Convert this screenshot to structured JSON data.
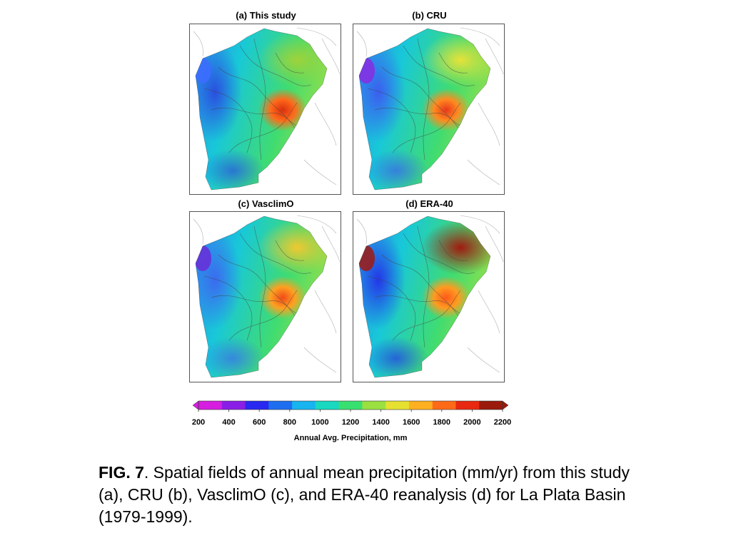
{
  "panels": [
    {
      "id": "a",
      "title": "(a) This study",
      "hot_color": "#d9300e",
      "hot2": "#ff6a1a",
      "west_color": "#2a4fe0",
      "north_color": "#9fd23a",
      "far_west": "#3d6cff"
    },
    {
      "id": "b",
      "title": "(b) CRU",
      "hot_color": "#e8381a",
      "hot2": "#ff8a20",
      "west_color": "#3b5ef0",
      "north_color": "#e6e23a",
      "far_west": "#8a2be2"
    },
    {
      "id": "c",
      "title": "(c) VasclimO",
      "hot_color": "#f04a18",
      "hot2": "#ffa020",
      "west_color": "#3b6af0",
      "north_color": "#f0c830",
      "far_west": "#6a2bd8"
    },
    {
      "id": "d",
      "title": "(d) ERA-40",
      "hot_color": "#ff5a1a",
      "hot2": "#ff9b20",
      "west_color": "#2436e8",
      "north_color": "#a01a10",
      "far_west": "#a01a10"
    }
  ],
  "colorbar": {
    "ticks": [
      "200",
      "400",
      "600",
      "800",
      "1000",
      "1200",
      "1400",
      "1600",
      "1800",
      "2000",
      "2200"
    ],
    "label": "Annual Avg. Precipitation, mm",
    "colors": [
      "#d51ee0",
      "#8a1ee6",
      "#2828f0",
      "#1e6ef0",
      "#18b4f0",
      "#18d8c0",
      "#38e070",
      "#9ae040",
      "#e6e030",
      "#ffb020",
      "#ff6a18",
      "#e82810",
      "#9a1a0c"
    ]
  },
  "caption": {
    "fig_label": "FIG. 7",
    "text": ". Spatial fields of annual mean precipitation (mm/yr) from this study (a), CRU (b), VasclimO (c), and ERA-40 reanalysis (d) for La Plata Basin (1979-1999)."
  }
}
